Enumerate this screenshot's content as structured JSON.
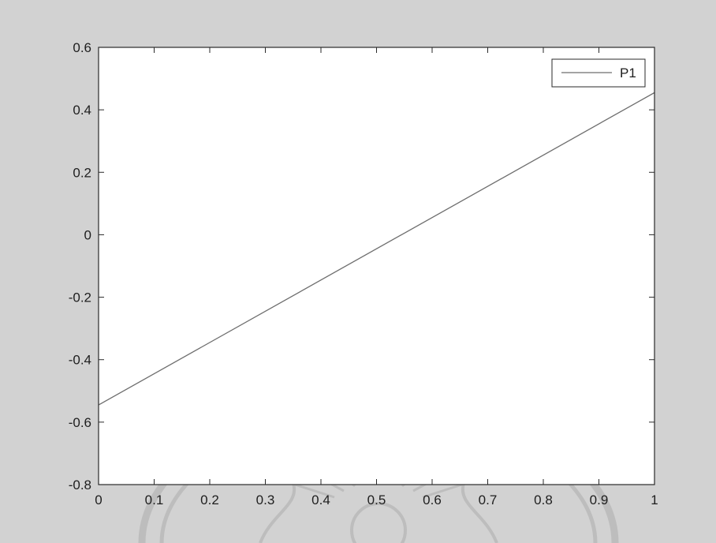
{
  "chart_data": {
    "type": "line",
    "title": "",
    "xlabel": "",
    "ylabel": "",
    "xlim": [
      0,
      1
    ],
    "ylim": [
      -0.8,
      0.6
    ],
    "xticks": [
      0,
      0.1,
      0.2,
      0.3,
      0.4,
      0.5,
      0.6,
      0.7,
      0.8,
      0.9,
      1
    ],
    "xtick_labels": [
      "0",
      "0.1",
      "0.2",
      "0.3",
      "0.4",
      "0.5",
      "0.6",
      "0.7",
      "0.8",
      "0.9",
      "1"
    ],
    "yticks": [
      0.6,
      0.4,
      0.2,
      0,
      -0.2,
      -0.4,
      -0.6,
      -0.8
    ],
    "ytick_labels": [
      "0.6",
      "0.4",
      "0.2",
      "0",
      "-0.2",
      "-0.4",
      "-0.6",
      "-0.8"
    ],
    "grid": false,
    "legend_position": "top-right",
    "series": [
      {
        "name": "P1",
        "x": [
          0,
          1
        ],
        "y": [
          -0.545,
          0.455
        ],
        "color": "#6e6e6e"
      }
    ]
  },
  "colors": {
    "background": "#d2d2d2",
    "plot_area": "#ffffff",
    "axis": "#2a2a2a",
    "watermark": "#bdbdbd"
  }
}
